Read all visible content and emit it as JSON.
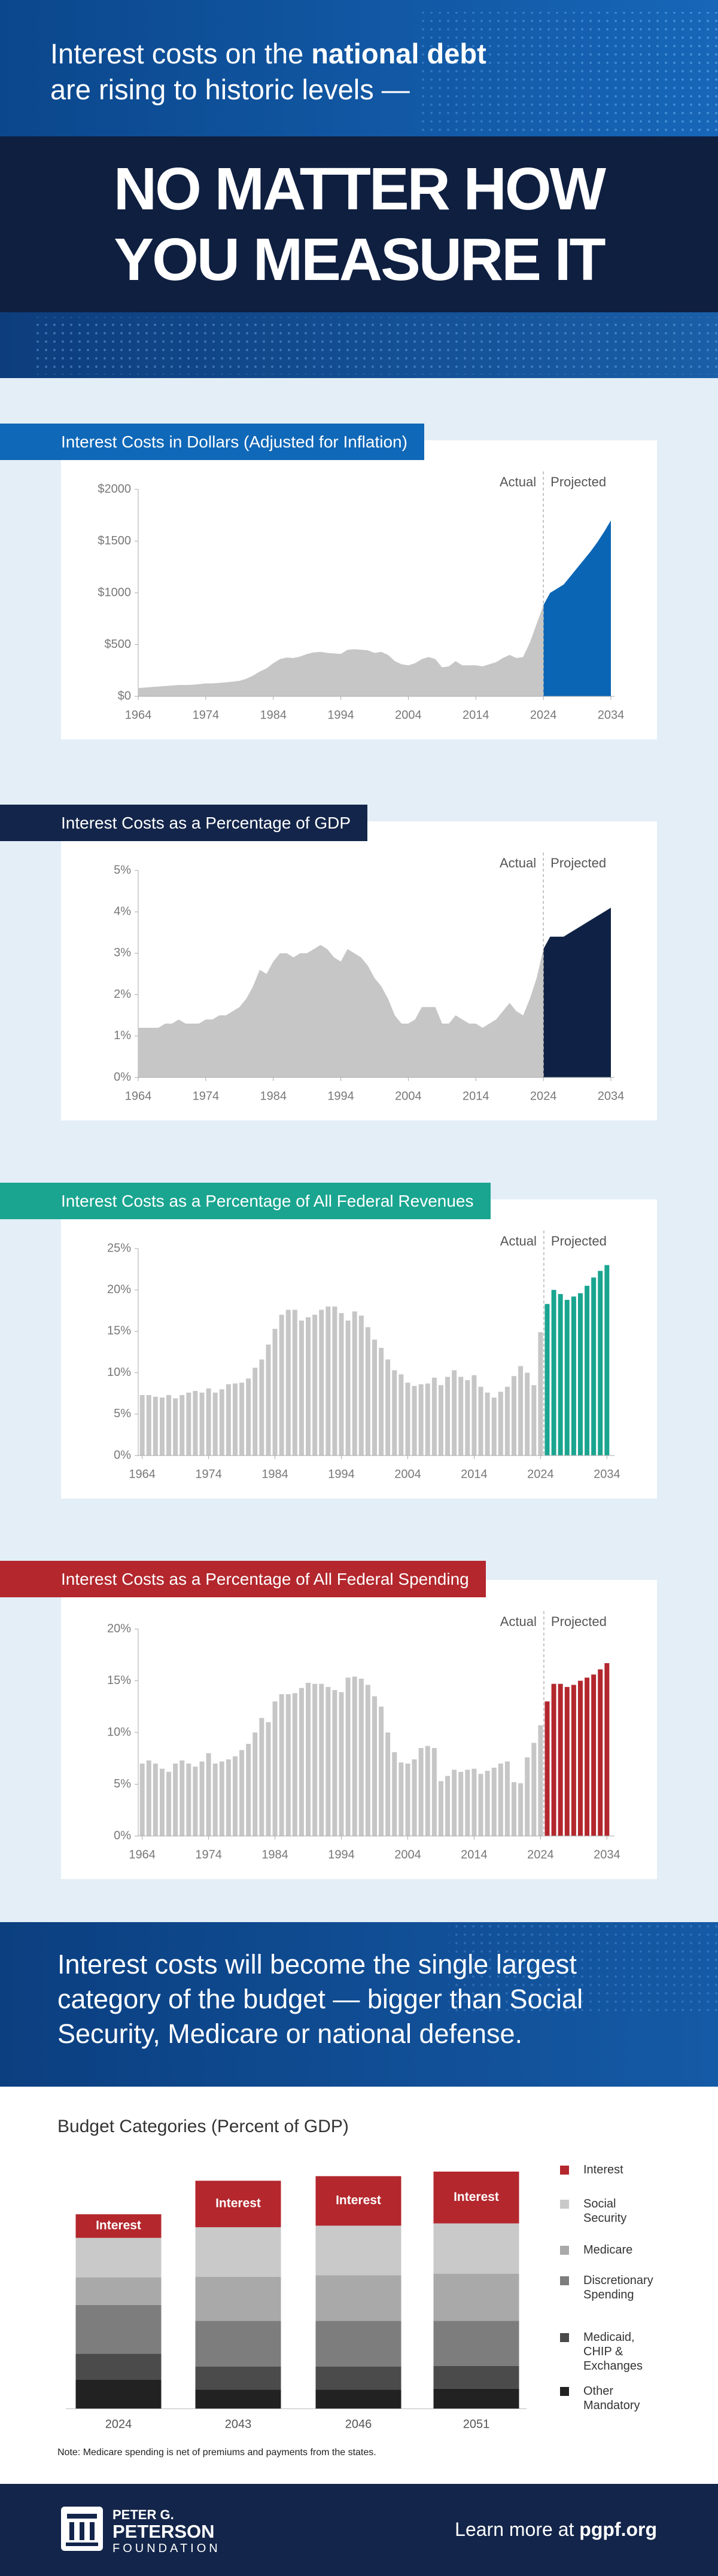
{
  "header": {
    "intro_before": "Interest costs on the",
    "intro_bold": "national debt",
    "intro_after": "are rising to historic levels —",
    "headline": [
      "NO MATTER HOW",
      "YOU MEASURE IT"
    ]
  },
  "chart_data": [
    {
      "type": "area",
      "title": "Interest Costs in Dollars (Adjusted for Inflation)",
      "xlim": [
        1964,
        2034
      ],
      "ylim": [
        0,
        2000
      ],
      "xticks": [
        1964,
        1974,
        1984,
        1994,
        2004,
        2014,
        2024,
        2034
      ],
      "yticks": [
        {
          "value": 0,
          "label": "$0"
        },
        {
          "value": 500,
          "label": "$500"
        },
        {
          "value": 1000,
          "label": "$1000"
        },
        {
          "value": 1500,
          "label": "$1500"
        },
        {
          "value": 2000,
          "label": "$2000"
        }
      ],
      "series": [
        {
          "name": "Actual",
          "color": "#c6c6c6",
          "x": [
            1964,
            1965,
            1966,
            1967,
            1968,
            1969,
            1970,
            1971,
            1972,
            1973,
            1974,
            1975,
            1976,
            1977,
            1978,
            1979,
            1980,
            1981,
            1982,
            1983,
            1984,
            1985,
            1986,
            1987,
            1988,
            1989,
            1990,
            1991,
            1992,
            1993,
            1994,
            1995,
            1996,
            1997,
            1998,
            1999,
            2000,
            2001,
            2002,
            2003,
            2004,
            2005,
            2006,
            2007,
            2008,
            2009,
            2010,
            2011,
            2012,
            2013,
            2014,
            2015,
            2016,
            2017,
            2018,
            2019,
            2020,
            2021,
            2022,
            2023,
            2024
          ],
          "values": [
            80,
            85,
            90,
            95,
            100,
            105,
            110,
            110,
            112,
            118,
            125,
            125,
            130,
            135,
            142,
            150,
            170,
            200,
            240,
            270,
            320,
            360,
            375,
            370,
            385,
            410,
            425,
            430,
            420,
            415,
            410,
            450,
            455,
            450,
            445,
            420,
            430,
            400,
            340,
            310,
            300,
            320,
            360,
            380,
            360,
            280,
            290,
            340,
            300,
            300,
            300,
            290,
            310,
            330,
            370,
            400,
            370,
            380,
            520,
            700,
            880
          ]
        },
        {
          "name": "Projected",
          "color": "#0b65b5",
          "x": [
            2024,
            2025,
            2026,
            2027,
            2028,
            2029,
            2030,
            2031,
            2032,
            2033,
            2034
          ],
          "values": [
            880,
            1000,
            1040,
            1080,
            1160,
            1240,
            1320,
            1400,
            1490,
            1590,
            1700
          ]
        }
      ]
    },
    {
      "type": "area",
      "title": "Interest Costs as a Percentage of GDP",
      "xlim": [
        1964,
        2034
      ],
      "ylim": [
        0,
        5
      ],
      "xticks": [
        1964,
        1974,
        1984,
        1994,
        2004,
        2014,
        2024,
        2034
      ],
      "yticks": [
        {
          "value": 0,
          "label": "0%"
        },
        {
          "value": 1,
          "label": "1%"
        },
        {
          "value": 2,
          "label": "2%"
        },
        {
          "value": 3,
          "label": "3%"
        },
        {
          "value": 4,
          "label": "4%"
        },
        {
          "value": 5,
          "label": "5%"
        }
      ],
      "series": [
        {
          "name": "Actual",
          "color": "#c6c6c6",
          "x": [
            1964,
            1965,
            1966,
            1967,
            1968,
            1969,
            1970,
            1971,
            1972,
            1973,
            1974,
            1975,
            1976,
            1977,
            1978,
            1979,
            1980,
            1981,
            1982,
            1983,
            1984,
            1985,
            1986,
            1987,
            1988,
            1989,
            1990,
            1991,
            1992,
            1993,
            1994,
            1995,
            1996,
            1997,
            1998,
            1999,
            2000,
            2001,
            2002,
            2003,
            2004,
            2005,
            2006,
            2007,
            2008,
            2009,
            2010,
            2011,
            2012,
            2013,
            2014,
            2015,
            2016,
            2017,
            2018,
            2019,
            2020,
            2021,
            2022,
            2023,
            2024
          ],
          "values": [
            1.2,
            1.2,
            1.2,
            1.2,
            1.3,
            1.3,
            1.4,
            1.3,
            1.3,
            1.3,
            1.4,
            1.4,
            1.5,
            1.5,
            1.6,
            1.7,
            1.9,
            2.2,
            2.6,
            2.5,
            2.8,
            3.0,
            3.0,
            2.9,
            3.0,
            3.0,
            3.1,
            3.2,
            3.1,
            2.9,
            2.8,
            3.1,
            3.0,
            2.9,
            2.7,
            2.4,
            2.2,
            1.9,
            1.5,
            1.3,
            1.3,
            1.4,
            1.7,
            1.7,
            1.7,
            1.3,
            1.3,
            1.5,
            1.4,
            1.3,
            1.3,
            1.2,
            1.3,
            1.4,
            1.6,
            1.8,
            1.6,
            1.5,
            1.9,
            2.4,
            3.1
          ]
        },
        {
          "name": "Projected",
          "color": "#0f2245",
          "x": [
            2024,
            2025,
            2026,
            2027,
            2028,
            2029,
            2030,
            2031,
            2032,
            2033,
            2034
          ],
          "values": [
            3.1,
            3.4,
            3.4,
            3.4,
            3.5,
            3.6,
            3.7,
            3.8,
            3.9,
            4.0,
            4.1
          ]
        }
      ]
    },
    {
      "type": "bar",
      "title": "Interest Costs as a Percentage of All Federal Revenues",
      "xlim": [
        1963.4,
        2034.6
      ],
      "ylim": [
        0,
        25
      ],
      "xticks": [
        1964,
        1974,
        1984,
        1994,
        2004,
        2014,
        2024,
        2034
      ],
      "yticks": [
        {
          "value": 0,
          "label": "0%"
        },
        {
          "value": 5,
          "label": "5%"
        },
        {
          "value": 10,
          "label": "10%"
        },
        {
          "value": 15,
          "label": "15%"
        },
        {
          "value": 20,
          "label": "20%"
        },
        {
          "value": 25,
          "label": "25%"
        }
      ],
      "series": [
        {
          "name": "Actual",
          "color": "#c6c6c6",
          "x": [
            1964,
            1965,
            1966,
            1967,
            1968,
            1969,
            1970,
            1971,
            1972,
            1973,
            1974,
            1975,
            1976,
            1977,
            1978,
            1979,
            1980,
            1981,
            1982,
            1983,
            1984,
            1985,
            1986,
            1987,
            1988,
            1989,
            1990,
            1991,
            1992,
            1993,
            1994,
            1995,
            1996,
            1997,
            1998,
            1999,
            2000,
            2001,
            2002,
            2003,
            2004,
            2005,
            2006,
            2007,
            2008,
            2009,
            2010,
            2011,
            2012,
            2013,
            2014,
            2015,
            2016,
            2017,
            2018,
            2019,
            2020,
            2021,
            2022,
            2023,
            2024
          ],
          "values": [
            7.3,
            7.3,
            7.1,
            7.0,
            7.3,
            6.9,
            7.3,
            7.6,
            7.8,
            7.6,
            8.1,
            7.6,
            8.0,
            8.6,
            8.7,
            8.8,
            9.3,
            10.6,
            11.6,
            13.4,
            15.3,
            17.0,
            17.6,
            17.6,
            16.3,
            16.7,
            17.0,
            17.6,
            18.0,
            18.0,
            17.2,
            16.3,
            17.4,
            16.9,
            15.5,
            14.0,
            13.0,
            11.6,
            10.3,
            9.8,
            8.8,
            8.4,
            8.6,
            8.7,
            9.4,
            8.5,
            9.5,
            10.3,
            9.5,
            9.1,
            9.7,
            8.3,
            7.6,
            7.0,
            7.7,
            8.3,
            9.6,
            10.8,
            10.0,
            8.5,
            14.9
          ]
        },
        {
          "name": "Projected",
          "color": "#1aa590",
          "x": [
            2025,
            2026,
            2027,
            2028,
            2029,
            2030,
            2031,
            2032,
            2033,
            2034
          ],
          "values": [
            18.3,
            20.0,
            19.5,
            18.8,
            19.2,
            19.6,
            20.5,
            21.5,
            22.3,
            23.0
          ]
        }
      ]
    },
    {
      "type": "bar",
      "title": "Interest Costs as a Percentage of All Federal Spending",
      "xlim": [
        1963.4,
        2034.6
      ],
      "ylim": [
        0,
        20
      ],
      "xticks": [
        1964,
        1974,
        1984,
        1994,
        2004,
        2014,
        2024,
        2034
      ],
      "yticks": [
        {
          "value": 0,
          "label": "0%"
        },
        {
          "value": 5,
          "label": "5%"
        },
        {
          "value": 10,
          "label": "10%"
        },
        {
          "value": 15,
          "label": "15%"
        },
        {
          "value": 20,
          "label": "20%"
        }
      ],
      "series": [
        {
          "name": "Actual",
          "color": "#c6c6c6",
          "x": [
            1964,
            1965,
            1966,
            1967,
            1968,
            1969,
            1970,
            1971,
            1972,
            1973,
            1974,
            1975,
            1976,
            1977,
            1978,
            1979,
            1980,
            1981,
            1982,
            1983,
            1984,
            1985,
            1986,
            1987,
            1988,
            1989,
            1990,
            1991,
            1992,
            1993,
            1994,
            1995,
            1996,
            1997,
            1998,
            1999,
            2000,
            2001,
            2002,
            2003,
            2004,
            2005,
            2006,
            2007,
            2008,
            2009,
            2010,
            2011,
            2012,
            2013,
            2014,
            2015,
            2016,
            2017,
            2018,
            2019,
            2020,
            2021,
            2022,
            2023,
            2024
          ],
          "values": [
            7.0,
            7.3,
            7.0,
            6.5,
            6.2,
            7.0,
            7.3,
            7.0,
            6.7,
            7.2,
            8.0,
            7.0,
            7.2,
            7.4,
            7.7,
            8.3,
            8.9,
            10.0,
            11.4,
            11.0,
            13.0,
            13.7,
            13.7,
            13.8,
            14.3,
            14.8,
            14.7,
            14.7,
            14.4,
            14.1,
            13.9,
            15.3,
            15.4,
            15.2,
            14.6,
            13.5,
            12.5,
            10.0,
            8.1,
            7.1,
            7.0,
            7.4,
            8.5,
            8.7,
            8.5,
            5.3,
            5.8,
            6.4,
            6.2,
            6.4,
            6.5,
            6.0,
            6.3,
            6.6,
            7.0,
            7.2,
            5.2,
            5.1,
            7.6,
            9.0,
            10.7
          ]
        },
        {
          "name": "Projected",
          "color": "#b3272d",
          "x": [
            2025,
            2026,
            2027,
            2028,
            2029,
            2030,
            2031,
            2032,
            2033,
            2034
          ],
          "values": [
            13.0,
            14.7,
            14.7,
            14.4,
            14.6,
            15.0,
            15.3,
            15.6,
            16.1,
            16.7
          ]
        }
      ]
    },
    {
      "type": "stacked_bar",
      "title": "Budget Categories (Percent of GDP)",
      "categories": [
        "2024",
        "2043",
        "2046",
        "2051"
      ],
      "series": [
        {
          "name": "Interest",
          "color": "#b3272d",
          "values": [
            3.1,
            6.1,
            6.5,
            6.8
          ]
        },
        {
          "name": "Social Security",
          "color": "#c9c9c9",
          "values": [
            5.2,
            6.5,
            6.5,
            6.6
          ]
        },
        {
          "name": "Medicare",
          "color": "#a9a9a9",
          "values": [
            3.6,
            5.8,
            6.0,
            6.2
          ]
        },
        {
          "name": "Discretionary Spending",
          "color": "#7d7d7d",
          "values": [
            6.4,
            6.0,
            6.0,
            5.9
          ]
        },
        {
          "name": "Medicaid, CHIP & Exchanges",
          "color": "#4b4b4b",
          "values": [
            3.4,
            3.0,
            3.0,
            3.0
          ]
        },
        {
          "name": "Other Mandatory",
          "color": "#222222",
          "values": [
            3.8,
            2.5,
            2.5,
            2.6
          ]
        }
      ],
      "note": "Note: Medicare spending is net of premiums and payments from the states."
    }
  ],
  "band": {
    "lines": [
      "Interest costs will become the single largest",
      "category of the budget — bigger than Social",
      "Security, Medicare or national defense."
    ]
  },
  "footer": {
    "logo": [
      "PETER G.",
      "PETERSON",
      "FOUNDATION"
    ],
    "learn_before": "Learn more at",
    "learn_link": "pgpf.org"
  }
}
